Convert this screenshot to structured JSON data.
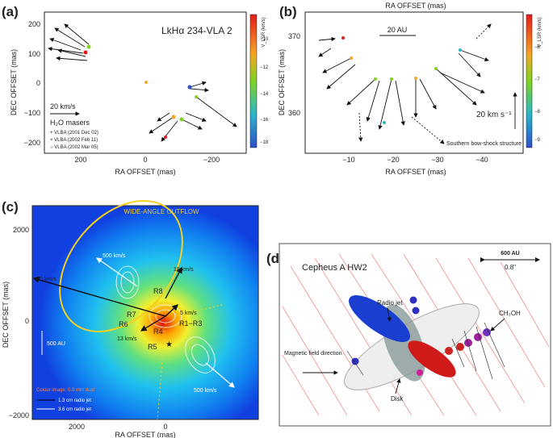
{
  "panels": [
    {
      "label": "(a)",
      "title": "LkHα 234-VLA 2",
      "y_axis_label": "DEC OFFSET (mas)",
      "x_axis_label": "RA OFFSET (mas)",
      "y_ticks": [
        "200",
        "100",
        "0",
        "−100",
        "−200"
      ],
      "x_ticks": [
        "200",
        "0",
        "−200"
      ],
      "colorbar_label": "V_LSR (km/s)",
      "colorbar_ticks": [
        "−10",
        "−12",
        "−14",
        "−16",
        "−18"
      ],
      "scale_label": "20 km/s",
      "species": "H₂O masers",
      "legend": [
        "+ VLBA (2001 Dec 02)",
        "× VLBA (2002 Feb 11)",
        "○ VLBA (2002 Mar 05)"
      ]
    },
    {
      "label": "(b)",
      "top_axis_label": "RA OFFSET (mas)",
      "y_axis_label": "DEC OFFSET (mas)",
      "x_axis_label": "RA OFFSET (mas)",
      "y_ticks": [
        "370",
        "360"
      ],
      "x_ticks": [
        "−10",
        "−20",
        "−30",
        "−40"
      ],
      "colorbar_label": "V_LSR (km/s)",
      "colorbar_ticks": [
        "−6",
        "−7",
        "−8",
        "−9"
      ],
      "length_scale": "20 AU",
      "velocity_scale": "20 km s⁻¹",
      "annotation": "Southern bow-shock structure"
    },
    {
      "label": "(c)",
      "y_axis_label": "DEC OFFSET (mas)",
      "x_axis_label": "RA OFFSET (mas)",
      "y_ticks": [
        "2000",
        "0",
        "−2000"
      ],
      "x_ticks": [
        "2000",
        "0"
      ],
      "outflow_label": "WIDE-ANGLE OUTFLOW",
      "annotations": [
        "500 km/s",
        "18 km/s",
        "70 km/s",
        "R8",
        "R7",
        "R6",
        "R4",
        "R1−R3",
        "R5",
        "5 km/s",
        "13 km/s",
        "500 AU",
        "500 km/s"
      ],
      "legend": [
        "Colour image: 0.9 mm dust",
        "1.3 cm radio jet",
        "3.6 cm radio jet"
      ]
    },
    {
      "label": "(d)",
      "title": "Cepheus A HW2",
      "length_scale": "600 AU",
      "angle_scale": "0.8\"",
      "annotations": [
        "Radio jet",
        "CH₃OH",
        "Magnetic field direction",
        "Disk"
      ]
    }
  ]
}
